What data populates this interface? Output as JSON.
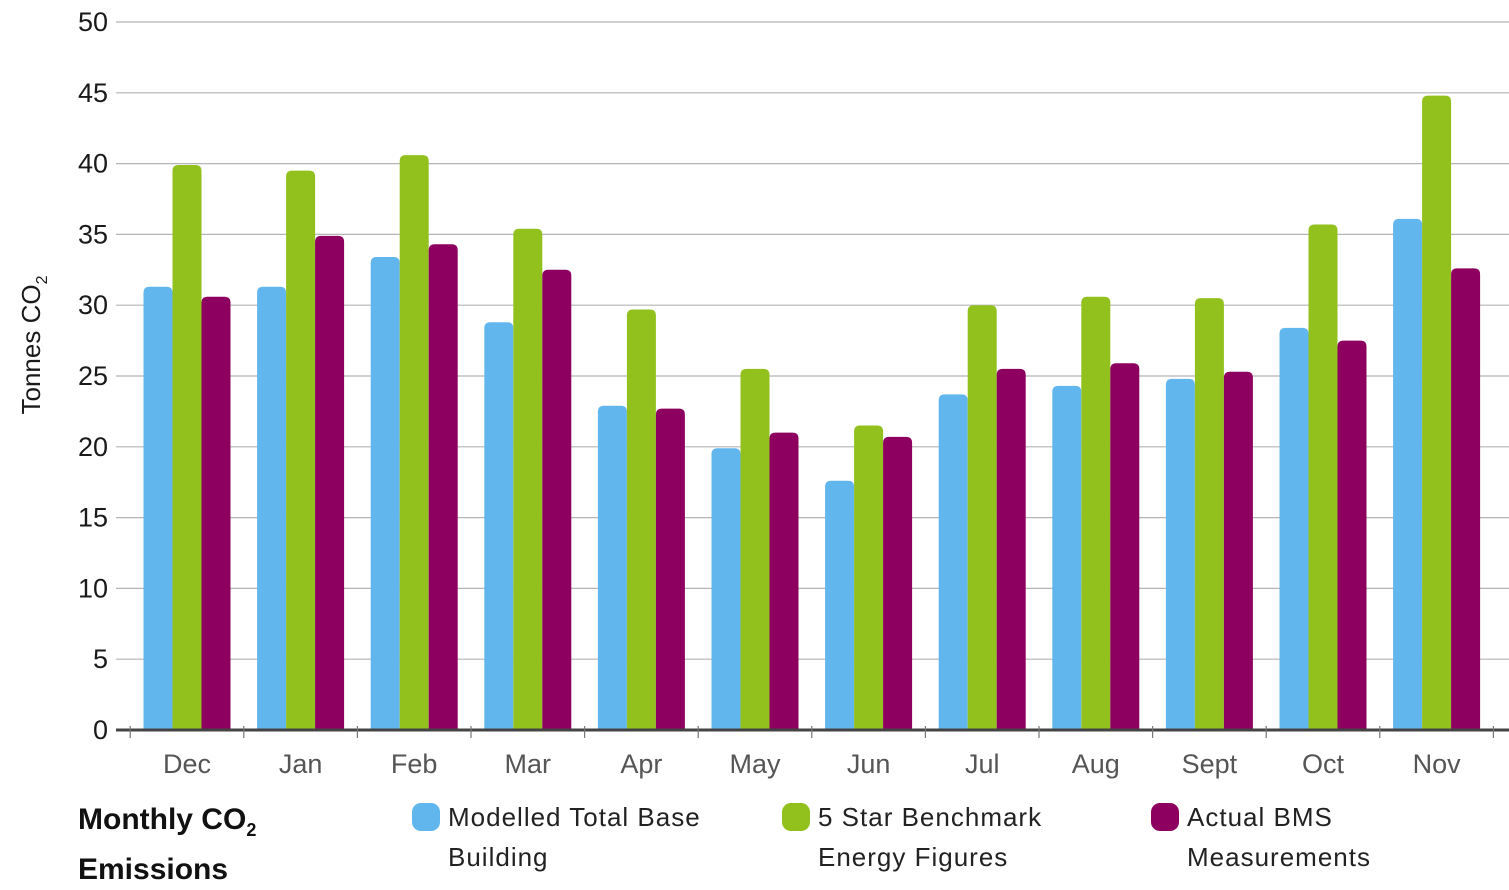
{
  "chart_data": {
    "type": "bar",
    "title_main": "Monthly CO",
    "title_sub": "2",
    "title_line2": "Emissions",
    "ylabel_main": "Tonnes CO",
    "ylabel_sub": "2",
    "ylim": [
      0,
      50
    ],
    "yticks": [
      0,
      5,
      10,
      15,
      20,
      25,
      30,
      35,
      40,
      45,
      50
    ],
    "grid": true,
    "categories": [
      "Dec",
      "Jan",
      "Feb",
      "Mar",
      "Apr",
      "May",
      "Jun",
      "Jul",
      "Aug",
      "Sept",
      "Oct",
      "Nov"
    ],
    "series": [
      {
        "name_line1": "Modelled Total Base",
        "name_line2": "Building",
        "color": "#62b6ee",
        "values": [
          31.3,
          31.3,
          33.4,
          28.8,
          22.9,
          19.9,
          17.6,
          23.7,
          24.3,
          24.8,
          28.4,
          36.1
        ]
      },
      {
        "name_line1": "5 Star Benchmark",
        "name_line2": "Energy Figures",
        "color": "#92c11e",
        "values": [
          39.9,
          39.5,
          40.6,
          35.4,
          29.7,
          25.5,
          21.5,
          30.0,
          30.6,
          30.5,
          35.7,
          44.8
        ]
      },
      {
        "name_line1": "Actual BMS",
        "name_line2": "Measurements",
        "color": "#8e0060",
        "values": [
          30.6,
          34.9,
          34.3,
          32.5,
          22.7,
          21.0,
          20.7,
          25.5,
          25.9,
          25.3,
          27.5,
          32.6
        ]
      }
    ]
  }
}
